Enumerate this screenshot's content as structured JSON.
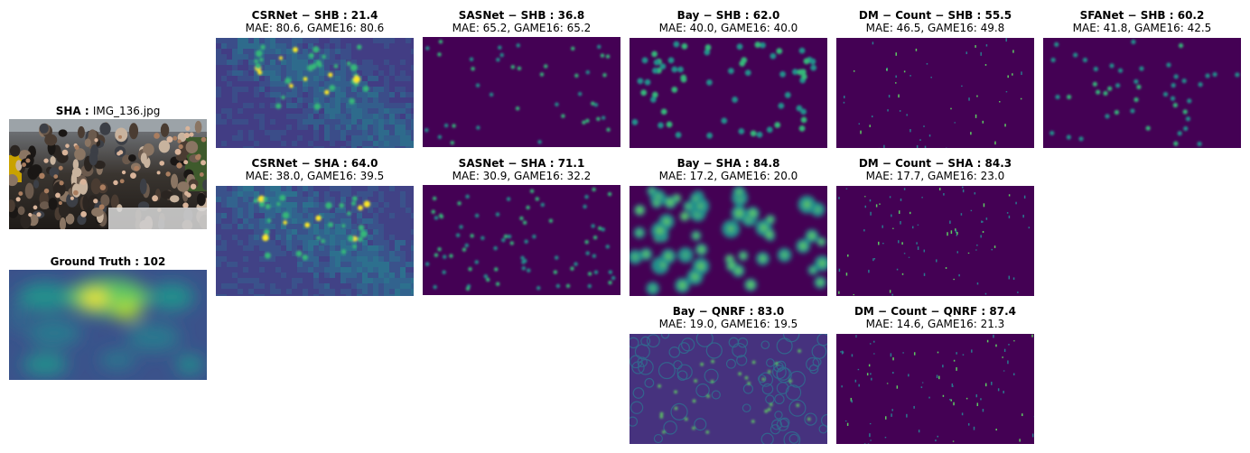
{
  "input": {
    "title": "SHA :",
    "filename": "IMG_136.jpg"
  },
  "ground_truth": {
    "title": "Ground Truth : 102"
  },
  "panels": [
    {
      "title": "CSRNet − SHB : 21.4",
      "metrics": "MAE: 80.6, GAME16: 80.6"
    },
    {
      "title": "SASNet − SHB : 36.8",
      "metrics": "MAE: 65.2, GAME16: 65.2"
    },
    {
      "title": "Bay − SHB : 62.0",
      "metrics": "MAE: 40.0, GAME16: 40.0"
    },
    {
      "title": "DM − Count − SHB : 55.5",
      "metrics": "MAE: 46.5, GAME16: 49.8"
    },
    {
      "title": "SFANet − SHB : 60.2",
      "metrics": "MAE: 41.8, GAME16: 42.5"
    },
    {
      "title": "CSRNet − SHA : 64.0",
      "metrics": "MAE: 38.0, GAME16: 39.5"
    },
    {
      "title": "SASNet − SHA : 71.1",
      "metrics": "MAE: 30.9, GAME16: 32.2"
    },
    {
      "title": "Bay − SHA : 84.8",
      "metrics": "MAE: 17.2, GAME16: 20.0"
    },
    {
      "title": "DM − Count − SHA : 84.3",
      "metrics": "MAE: 17.7, GAME16: 23.0"
    },
    {
      "title": "Bay − QNRF : 83.0",
      "metrics": "MAE: 19.0, GAME16: 19.5"
    },
    {
      "title": "DM − Count − QNRF : 87.4",
      "metrics": "MAE: 14.6, GAME16: 21.3"
    }
  ],
  "colors": {
    "viridis_dark": "#440154",
    "viridis_blue": "#3b528b",
    "viridis_teal": "#21918c",
    "viridis_green": "#5ec962",
    "viridis_yellow": "#fde725"
  }
}
